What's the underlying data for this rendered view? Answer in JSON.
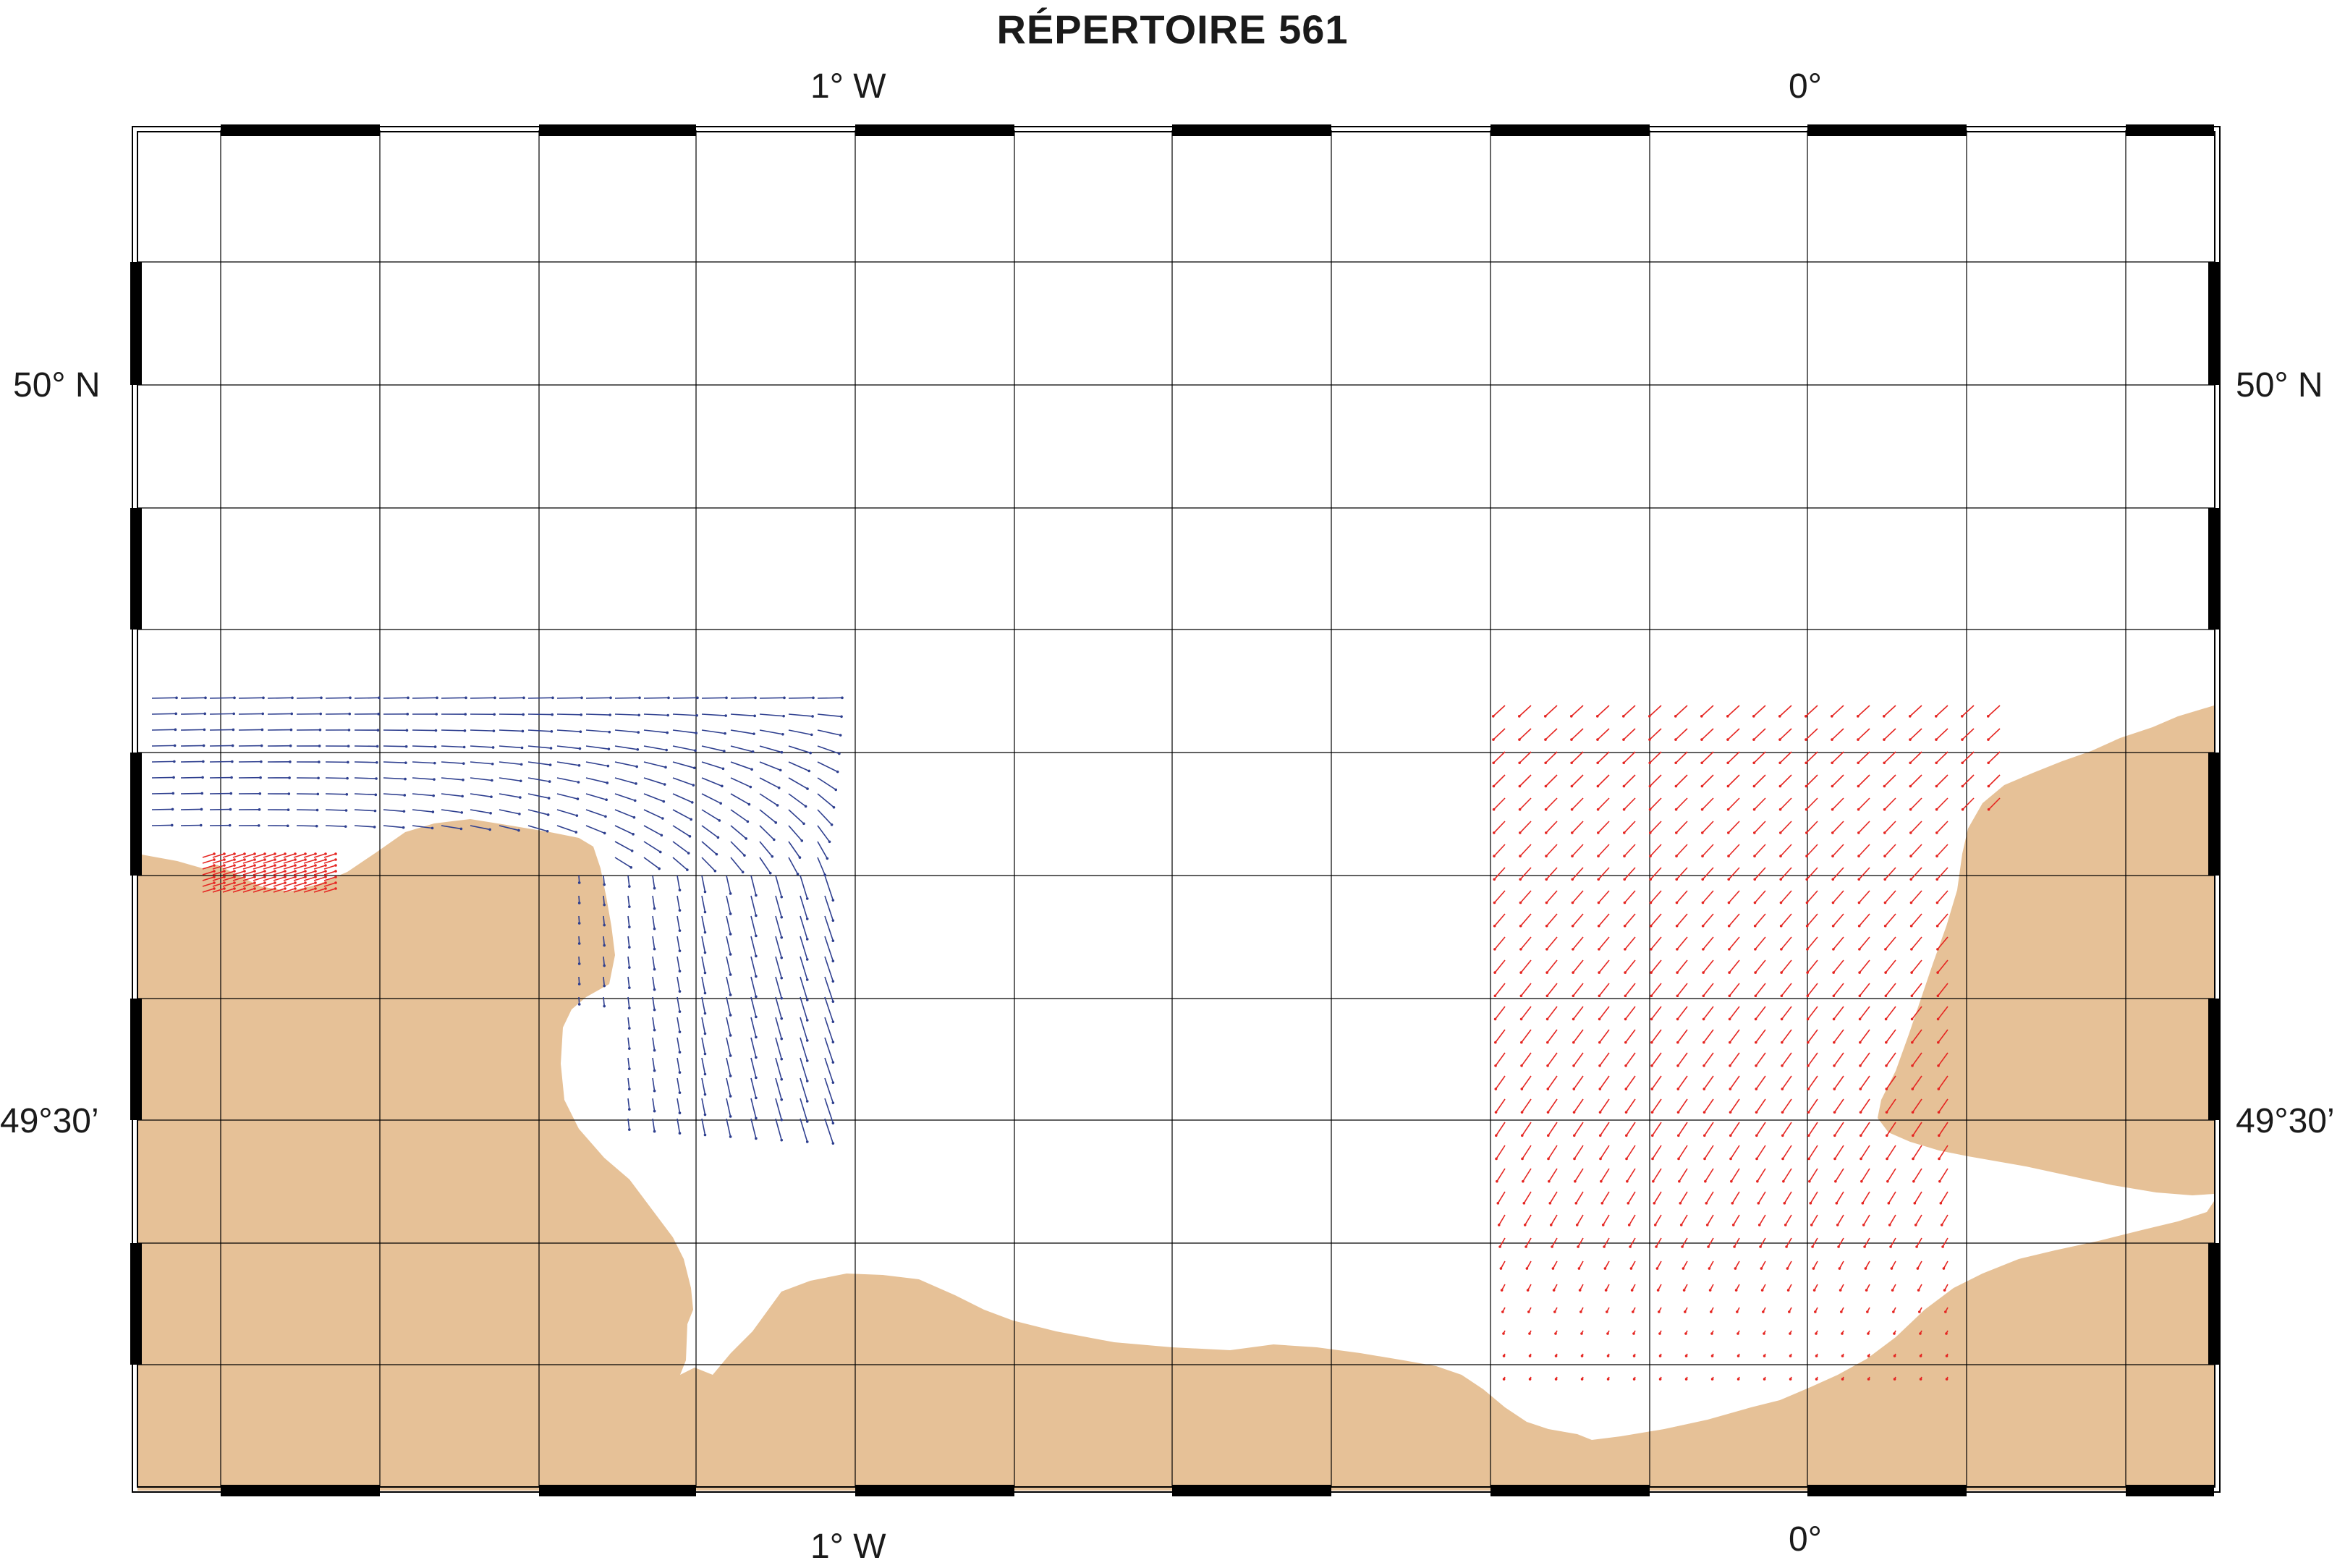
{
  "title": "RÉPERTOIRE 561",
  "labels": {
    "lon_west": "1° W",
    "lon_zero": "0°",
    "lat_north": "50° N",
    "lat_south": "49°30’"
  },
  "colors": {
    "land": "#e6c197",
    "sea": "#ffffff",
    "graticule": "#000000",
    "vectors_blue": "#2e3f8f",
    "vectors_red": "#e52521"
  },
  "map": {
    "projection_grid": "10-minute graticule",
    "lon_range": [
      "1°30’ W",
      "0°30’ E"
    ],
    "lat_range": [
      "49°15’ N",
      "50°15’ N"
    ]
  }
}
